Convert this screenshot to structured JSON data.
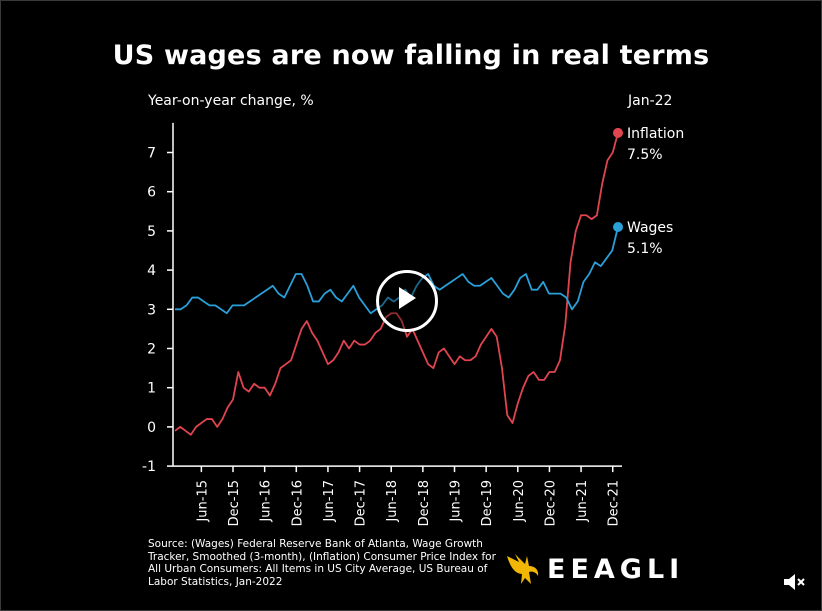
{
  "title": "US wages are now falling in real terms",
  "ylabel": "Year-on-year change, %",
  "date_tag": "Jan-22",
  "source": "Source: (Wages) Federal Reserve Bank of Atlanta, Wage Growth Tracker, Smoothed (3-month), (Inflation) Consumer Price Index for All Urban Consumers: All Items in US City Average, US Bureau of Labor Statistics, Jan-2022",
  "logo_text": "EEAGLI",
  "colors": {
    "inflation": "#e0454f",
    "wages": "#2a9fd8",
    "accent_logo": "#f2b705",
    "axis": "#ffffff"
  },
  "icons": {
    "play": "play-icon",
    "mute": "speaker-muted-icon",
    "logo": "eagle-logo-icon"
  },
  "chart_data": {
    "type": "line",
    "title": "US wages are now falling in real terms",
    "ylabel": "Year-on-year change, %",
    "ylim": [
      -1,
      7.5
    ],
    "yticks": [
      -1,
      0,
      1,
      2,
      3,
      4,
      5,
      6,
      7
    ],
    "x_range": [
      "2015-01",
      "2022-01"
    ],
    "x_ticks": [
      "Jun-15",
      "Dec-15",
      "Jun-16",
      "Dec-16",
      "Jun-17",
      "Dec-17",
      "Jun-18",
      "Dec-18",
      "Jun-19",
      "Dec-19",
      "Jun-20",
      "Dec-20",
      "Jun-21",
      "Dec-21"
    ],
    "grid": false,
    "series": [
      {
        "name": "Inflation",
        "end_label": "7.5%",
        "color": "#e0454f",
        "start": "2015-01",
        "values": [
          -0.1,
          0.0,
          -0.1,
          -0.2,
          0.0,
          0.1,
          0.2,
          0.2,
          0.0,
          0.2,
          0.5,
          0.7,
          1.4,
          1.0,
          0.9,
          1.1,
          1.0,
          1.0,
          0.8,
          1.1,
          1.5,
          1.6,
          1.7,
          2.1,
          2.5,
          2.7,
          2.4,
          2.2,
          1.9,
          1.6,
          1.7,
          1.9,
          2.2,
          2.0,
          2.2,
          2.1,
          2.1,
          2.2,
          2.4,
          2.5,
          2.8,
          2.9,
          2.9,
          2.7,
          2.3,
          2.5,
          2.2,
          1.9,
          1.6,
          1.5,
          1.9,
          2.0,
          1.8,
          1.6,
          1.8,
          1.7,
          1.7,
          1.8,
          2.1,
          2.3,
          2.5,
          2.3,
          1.5,
          0.3,
          0.1,
          0.6,
          1.0,
          1.3,
          1.4,
          1.2,
          1.2,
          1.4,
          1.4,
          1.7,
          2.6,
          4.2,
          5.0,
          5.4,
          5.4,
          5.3,
          5.4,
          6.2,
          6.8,
          7.0,
          7.5
        ]
      },
      {
        "name": "Wages",
        "end_label": "5.1%",
        "color": "#2a9fd8",
        "start": "2015-01",
        "values": [
          3.0,
          3.0,
          3.1,
          3.3,
          3.3,
          3.2,
          3.1,
          3.1,
          3.0,
          2.9,
          3.1,
          3.1,
          3.1,
          3.2,
          3.3,
          3.4,
          3.5,
          3.6,
          3.4,
          3.3,
          3.6,
          3.9,
          3.9,
          3.6,
          3.2,
          3.2,
          3.4,
          3.5,
          3.3,
          3.2,
          3.4,
          3.6,
          3.3,
          3.1,
          2.9,
          3.0,
          3.1,
          3.3,
          3.2,
          3.3,
          3.5,
          3.3,
          3.6,
          3.8,
          3.9,
          3.6,
          3.5,
          3.6,
          3.7,
          3.8,
          3.9,
          3.7,
          3.6,
          3.6,
          3.7,
          3.8,
          3.6,
          3.4,
          3.3,
          3.5,
          3.8,
          3.9,
          3.5,
          3.5,
          3.7,
          3.4,
          3.4,
          3.4,
          3.3,
          3.0,
          3.2,
          3.7,
          3.9,
          4.2,
          4.1,
          4.3,
          4.5,
          5.1
        ]
      }
    ]
  }
}
